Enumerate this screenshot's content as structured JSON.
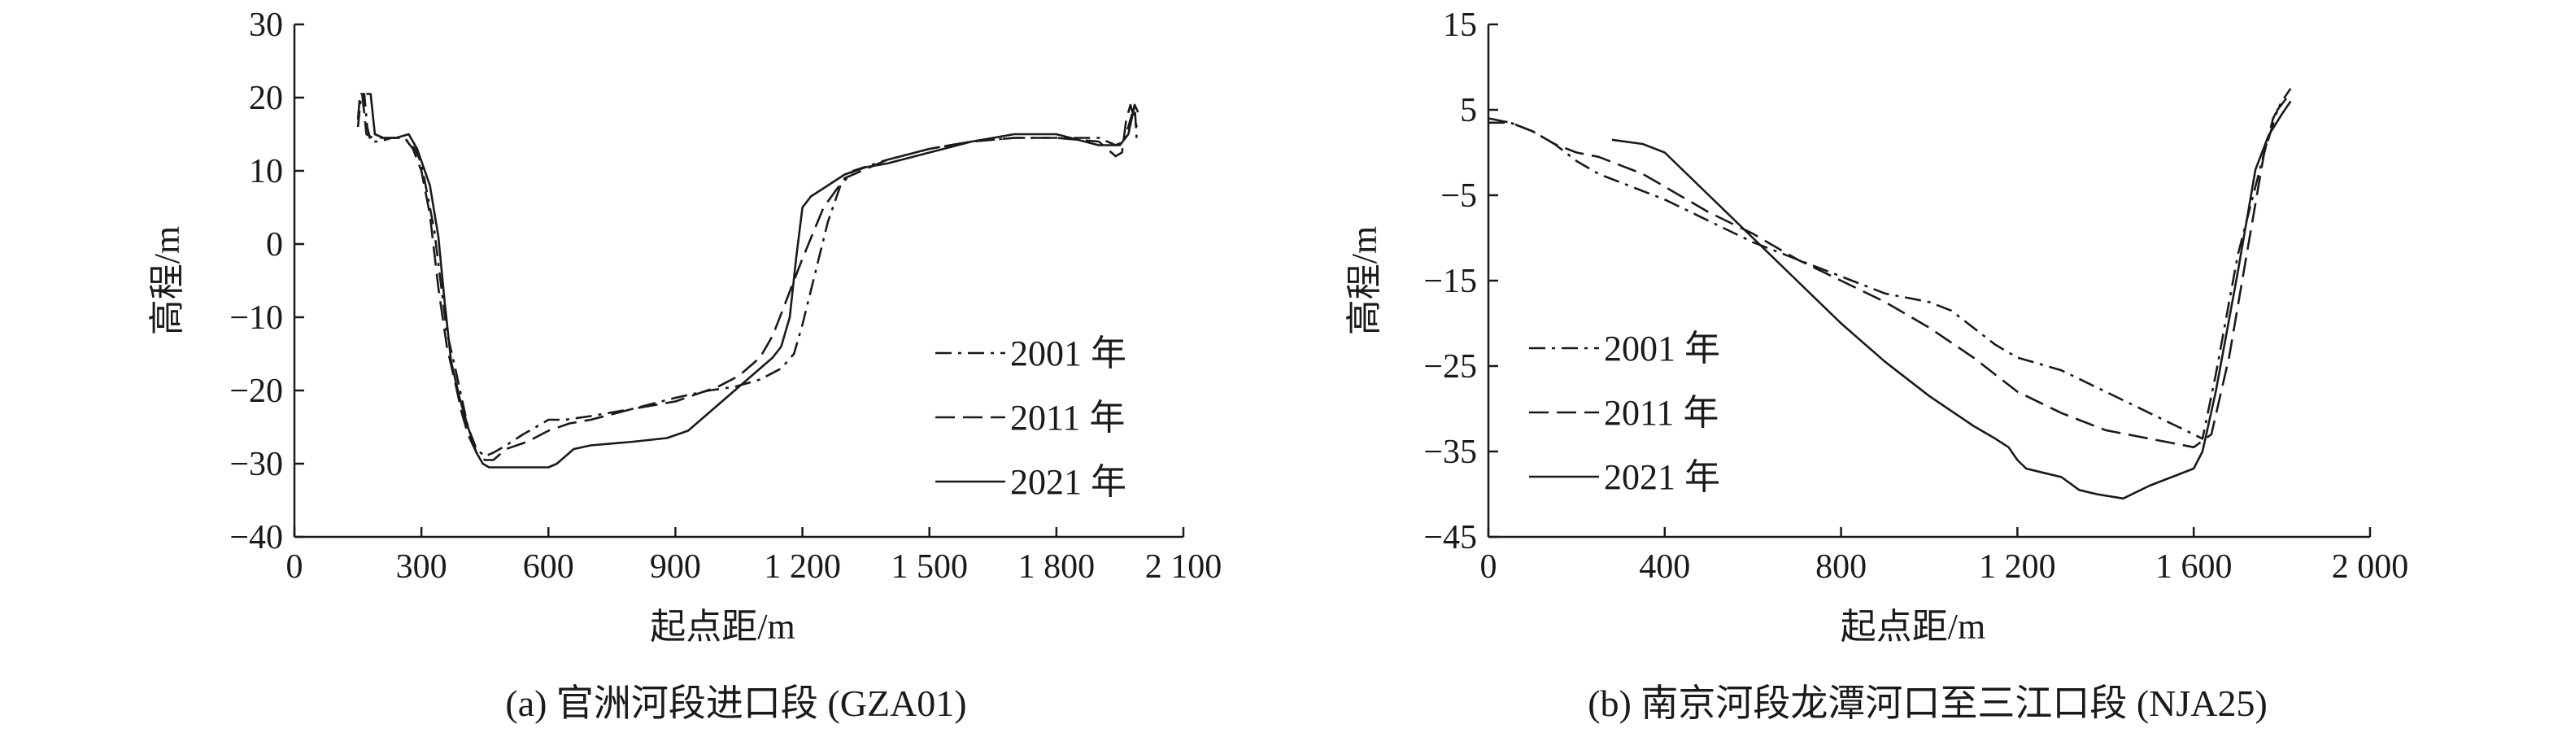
{
  "chart_data": [
    {
      "type": "line",
      "caption": "(a) 官洲河段进口段 (GZA01)",
      "xlabel": "起点距/m",
      "ylabel": "高程/m",
      "xlim": [
        0,
        2100
      ],
      "ylim": [
        -40,
        30
      ],
      "x_ticks": [
        0,
        300,
        600,
        900,
        1200,
        1500,
        1800,
        2100
      ],
      "x_tick_labels": [
        "0",
        "300",
        "600",
        "900",
        "1 200",
        "1 500",
        "1 800",
        "2 100"
      ],
      "y_ticks": [
        -40,
        -30,
        -20,
        -10,
        0,
        10,
        20,
        30
      ],
      "y_tick_labels": [
        "−40",
        "−30",
        "−20",
        "−10",
        "0",
        "10",
        "20",
        "30"
      ],
      "legend_position": "right",
      "series": [
        {
          "name": "2001 年",
          "dash": "dashdot",
          "x": [
            150,
            158,
            165,
            172,
            180,
            200,
            230,
            260,
            285,
            300,
            330,
            360,
            380,
            395,
            410,
            430,
            450,
            470,
            500,
            540,
            600,
            640,
            700,
            800,
            900,
            980,
            1040,
            1100,
            1150,
            1180,
            1200,
            1230,
            1260,
            1290,
            1320,
            1400,
            1500,
            1600,
            1700,
            1800,
            1900,
            1940,
            1960,
            1975,
            1985,
            1990
          ],
          "y": [
            16,
            20.5,
            20.5,
            16,
            14,
            14,
            14.5,
            14.5,
            13,
            11,
            2,
            -12,
            -17,
            -21,
            -25,
            -28,
            -29,
            -28.5,
            -27.5,
            -26,
            -24,
            -24,
            -23.5,
            -22.5,
            -21,
            -20,
            -19.5,
            -18.5,
            -17,
            -15,
            -11,
            -4,
            3,
            8,
            10,
            11.5,
            13,
            14,
            14.5,
            14.5,
            14.5,
            13.5,
            14,
            17,
            19,
            14
          ]
        },
        {
          "name": "2011 年",
          "dash": "dash",
          "x": [
            150,
            155,
            160,
            170,
            185,
            200,
            230,
            260,
            280,
            300,
            320,
            340,
            360,
            380,
            395,
            410,
            430,
            450,
            470,
            500,
            550,
            600,
            650,
            700,
            800,
            900,
            1000,
            1050,
            1100,
            1130,
            1160,
            1180,
            1200,
            1250,
            1300,
            1400,
            1500,
            1600,
            1700,
            1800,
            1900,
            1940,
            1955,
            1965,
            1975,
            1985,
            1990
          ],
          "y": [
            17,
            20.5,
            20.5,
            15,
            14.5,
            14.5,
            14.5,
            14.5,
            13,
            10,
            4,
            -6,
            -14,
            -19,
            -23,
            -26,
            -28.5,
            -29.5,
            -29.5,
            -28,
            -27,
            -25.5,
            -24.5,
            -24,
            -22.5,
            -21.5,
            -19.5,
            -18,
            -15.5,
            -12.5,
            -8,
            -5,
            -2,
            5,
            9,
            11.5,
            13,
            14,
            14.5,
            14.5,
            14,
            12,
            12.5,
            17,
            19,
            17,
            16
          ]
        },
        {
          "name": "2021 年",
          "dash": "solid",
          "x": [
            170,
            180,
            190,
            210,
            240,
            270,
            290,
            320,
            340,
            355,
            370,
            390,
            410,
            430,
            445,
            460,
            480,
            520,
            560,
            600,
            620,
            640,
            660,
            700,
            800,
            880,
            930,
            1000,
            1050,
            1100,
            1130,
            1150,
            1170,
            1185,
            1200,
            1220,
            1260,
            1300,
            1350,
            1400,
            1500,
            1600,
            1700,
            1800,
            1900,
            1950,
            1970,
            1985,
            1993
          ],
          "y": [
            20.5,
            20.5,
            15,
            14.5,
            14.5,
            15,
            13,
            8,
            1,
            -8,
            -16,
            -21,
            -25,
            -28.5,
            -30,
            -30.5,
            -30.5,
            -30.5,
            -30.5,
            -30.5,
            -30,
            -29,
            -28,
            -27.5,
            -27,
            -26.5,
            -25.5,
            -22,
            -19.5,
            -17,
            -15.5,
            -14,
            -10,
            -2,
            5,
            6.5,
            8,
            9.5,
            10.5,
            11,
            12.5,
            14,
            15,
            15,
            13.5,
            13.5,
            15,
            19,
            18
          ]
        }
      ]
    },
    {
      "type": "line",
      "caption": "(b) 南京河段龙潭河口至三江口段 (NJA25)",
      "xlabel": "起点距/m",
      "ylabel": "高程/m",
      "xlim": [
        0,
        2000
      ],
      "ylim": [
        -45,
        15
      ],
      "x_ticks": [
        0,
        400,
        800,
        1200,
        1600,
        2000
      ],
      "x_tick_labels": [
        "0",
        "400",
        "800",
        "1 200",
        "1 600",
        "2 000"
      ],
      "y_ticks": [
        -45,
        -35,
        -25,
        -15,
        -5,
        5,
        15
      ],
      "y_tick_labels": [
        "−45",
        "−35",
        "−25",
        "−15",
        "−5",
        "5",
        "15"
      ],
      "legend_position": "left",
      "series": [
        {
          "name": "2001 年",
          "dash": "dashdot",
          "x": [
            0,
            50,
            100,
            150,
            200,
            250,
            300,
            350,
            400,
            500,
            600,
            700,
            800,
            900,
            1000,
            1050,
            1100,
            1150,
            1200,
            1300,
            1400,
            1500,
            1560,
            1600,
            1620,
            1650,
            1700,
            1750,
            1780,
            1800,
            1820
          ],
          "y": [
            3.5,
            3.5,
            2.5,
            1,
            -1,
            -2.5,
            -3.5,
            -4.5,
            -5.5,
            -8,
            -10.5,
            -12.5,
            -14.5,
            -16.5,
            -17.5,
            -18.5,
            -20.5,
            -22.5,
            -24,
            -25.5,
            -28,
            -30.5,
            -32,
            -33,
            -33.5,
            -26,
            -12,
            -2,
            4,
            6,
            7.5
          ]
        },
        {
          "name": "2011 年",
          "dash": "dash",
          "x": [
            0,
            50,
            100,
            150,
            200,
            250,
            300,
            350,
            400,
            500,
            600,
            700,
            800,
            900,
            1000,
            1100,
            1200,
            1300,
            1400,
            1500,
            1550,
            1600,
            1640,
            1680,
            1720,
            1760,
            1790,
            1820
          ],
          "y": [
            4,
            3.5,
            2.5,
            1,
            0,
            -0.5,
            -1.5,
            -2.5,
            -4,
            -7,
            -9.5,
            -12.5,
            -15,
            -17.5,
            -20.5,
            -24,
            -28,
            -30.5,
            -32.5,
            -33.5,
            -34,
            -34.5,
            -33,
            -24,
            -12,
            0,
            5,
            7
          ]
        },
        {
          "name": "2021 年",
          "dash": "solid",
          "x": [
            280,
            350,
            400,
            500,
            600,
            700,
            800,
            900,
            1000,
            1100,
            1150,
            1180,
            1200,
            1220,
            1260,
            1300,
            1340,
            1380,
            1440,
            1500,
            1550,
            1600,
            1620,
            1650,
            1700,
            1740,
            1770,
            1800,
            1820
          ],
          "y": [
            1.5,
            1,
            0,
            -5,
            -10,
            -15,
            -20,
            -24.5,
            -28.5,
            -32,
            -33.5,
            -34.5,
            -36,
            -37,
            -37.5,
            -38,
            -39.5,
            -40,
            -40.5,
            -39,
            -38,
            -37,
            -35,
            -28,
            -14,
            -2,
            2,
            4.5,
            6
          ]
        }
      ]
    }
  ]
}
